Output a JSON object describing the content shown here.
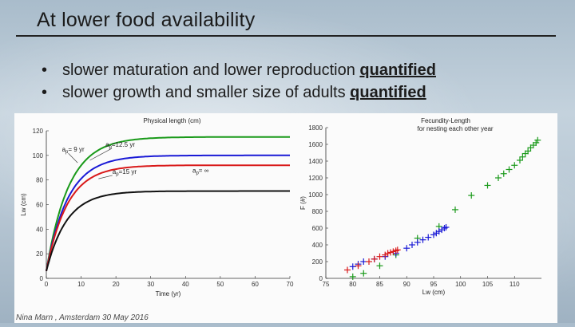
{
  "slide": {
    "title": "At lower food availability",
    "bullets": [
      {
        "text": "slower maturation and lower reproduction ",
        "emphasis": "quantified"
      },
      {
        "text": "slower growth and smaller size of adults ",
        "emphasis": "quantified"
      }
    ],
    "footer": "Nina Marn , Amsterdam 30 May 2016"
  },
  "chart_data": [
    {
      "type": "line",
      "title": "Physical length (cm)",
      "xlabel": "Time (yr)",
      "ylabel": "Lw (cm)",
      "xlim": [
        0,
        70
      ],
      "ylim": [
        0,
        120
      ],
      "xticks": [
        0,
        10,
        20,
        30,
        40,
        50,
        60,
        70
      ],
      "yticks": [
        0,
        20,
        40,
        60,
        80,
        100,
        120
      ],
      "series": [
        {
          "name": "green",
          "color": "#1a9a1a",
          "Linf": 115,
          "rate": 0.155,
          "L0": 6
        },
        {
          "name": "blue",
          "color": "#1a1ad6",
          "Linf": 100,
          "rate": 0.16,
          "L0": 6
        },
        {
          "name": "red",
          "color": "#d91a1a",
          "Linf": 92,
          "rate": 0.165,
          "L0": 6
        },
        {
          "name": "black",
          "color": "#111111",
          "Linf": 71,
          "rate": 0.17,
          "L0": 6
        }
      ],
      "annotations": [
        {
          "text": "a",
          "sub": "p",
          "rest": "= 9 yr"
        },
        {
          "text": "a",
          "sub": "p",
          "rest": "=12.5 yr"
        },
        {
          "text": "a",
          "sub": "p",
          "rest": "=15 yr"
        },
        {
          "text": "a",
          "sub": "p",
          "rest": "= ∞"
        }
      ]
    },
    {
      "type": "scatter",
      "title": "Fecundity-Length",
      "subtitle": "for nesting each other year",
      "xlabel": "Lw (cm)",
      "ylabel": "F (#)",
      "xlim": [
        75,
        115
      ],
      "ylim": [
        0,
        1800
      ],
      "xticks": [
        75,
        80,
        85,
        90,
        95,
        100,
        105,
        110
      ],
      "yticks": [
        0,
        200,
        400,
        600,
        800,
        1000,
        1200,
        1400,
        1600,
        1800
      ],
      "marker": "+",
      "series": [
        {
          "name": "green",
          "color": "#1a9a1a",
          "x": [
            80,
            82,
            85,
            88,
            92,
            96,
            99,
            102,
            105,
            107,
            108,
            109,
            110,
            111,
            111.5,
            112,
            112.5,
            113,
            113.5,
            114,
            114.3
          ],
          "y": [
            20,
            60,
            150,
            280,
            480,
            620,
            820,
            990,
            1110,
            1200,
            1250,
            1300,
            1350,
            1410,
            1450,
            1490,
            1520,
            1560,
            1590,
            1620,
            1650
          ]
        },
        {
          "name": "blue",
          "color": "#1a1ad6",
          "x": [
            80,
            81,
            82,
            84,
            86,
            88,
            90,
            91,
            92,
            93,
            94,
            95,
            95.5,
            96,
            96.5,
            97,
            97.3
          ],
          "y": [
            140,
            170,
            200,
            230,
            260,
            300,
            360,
            400,
            430,
            460,
            490,
            520,
            540,
            560,
            580,
            600,
            610
          ]
        },
        {
          "name": "red",
          "color": "#d91a1a",
          "x": [
            79,
            81,
            83,
            84,
            85,
            86,
            86.5,
            87,
            87.5,
            88,
            88.3
          ],
          "y": [
            100,
            150,
            200,
            230,
            260,
            280,
            300,
            310,
            320,
            330,
            340
          ]
        },
        {
          "name": "black",
          "color": "#111111",
          "x": [],
          "y": []
        }
      ]
    }
  ]
}
